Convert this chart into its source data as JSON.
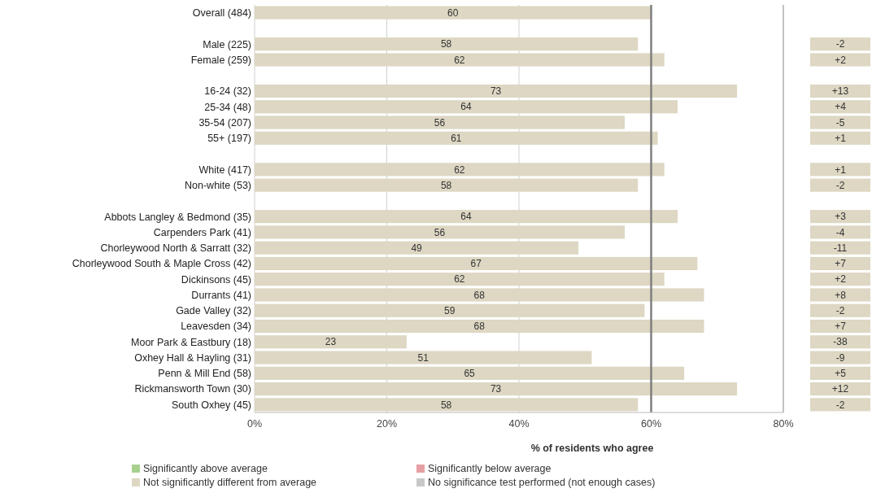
{
  "chart_data": {
    "type": "bar",
    "orientation": "horizontal",
    "xlabel": "% of residents who agree",
    "categories": [
      "Overall (484)",
      null,
      "Male (225)",
      "Female (259)",
      null,
      "16-24 (32)",
      "25-34 (48)",
      "35-54 (207)",
      "55+ (197)",
      null,
      "White (417)",
      "Non-white (53)",
      null,
      "Abbots Langley & Bedmond (35)",
      "Carpenders Park (41)",
      "Chorleywood North & Sarratt (32)",
      "Chorleywood South & Maple Cross (42)",
      "Dickinsons (45)",
      "Durrants (41)",
      "Gade Valley (32)",
      "Leavesden (34)",
      "Moor Park & Eastbury (18)",
      "Oxhey Hall & Hayling (31)",
      "Penn & Mill End (58)",
      "Rickmansworth Town (30)",
      "South Oxhey (45)"
    ],
    "series": [
      {
        "name": "Significantly above average",
        "color": "#a9d18e",
        "values": [
          null,
          null,
          null,
          null,
          null,
          null,
          null,
          null,
          null,
          null,
          null,
          null,
          null,
          null,
          null,
          null,
          null,
          null,
          null,
          null,
          null,
          null,
          null,
          null,
          null,
          null
        ]
      },
      {
        "name": "Significantly below average",
        "color": "#e6a0a4",
        "values": [
          null,
          null,
          null,
          null,
          null,
          null,
          null,
          null,
          null,
          null,
          null,
          null,
          null,
          null,
          null,
          null,
          null,
          null,
          null,
          null,
          null,
          null,
          null,
          null,
          null,
          null
        ]
      },
      {
        "name": "Not significantly different from average",
        "color": "#ddd7c3",
        "values": [
          60,
          null,
          58,
          62,
          null,
          73,
          64,
          56,
          61,
          null,
          62,
          58,
          null,
          64,
          56,
          49,
          67,
          62,
          68,
          59,
          68,
          23,
          51,
          65,
          73,
          58
        ]
      },
      {
        "name": "No significance test performed (not enough cases)",
        "color": "#c8c8c8",
        "values": [
          null,
          null,
          null,
          null,
          null,
          null,
          null,
          null,
          null,
          null,
          null,
          null,
          null,
          null,
          null,
          null,
          null,
          null,
          null,
          null,
          null,
          null,
          null,
          null,
          null,
          null
        ]
      }
    ],
    "data_labels": true,
    "xlim": [
      0,
      80
    ],
    "xticks": [
      {
        "value": 0,
        "label": "0%"
      },
      {
        "value": 20,
        "label": "20%"
      },
      {
        "value": 40,
        "label": "40%"
      },
      {
        "value": 60,
        "label": "60%"
      },
      {
        "value": 80,
        "label": "80%"
      }
    ],
    "grid": "x",
    "legend": "bottom",
    "ref_lines": [
      {
        "axis": "x",
        "value": 60,
        "color": "#7f7f7f"
      }
    ],
    "annotations": [
      "-2",
      "+2",
      "+13",
      "+4",
      "-5",
      "+1",
      "+1",
      "-2",
      "+3",
      "-4",
      "-11",
      "+7",
      "+2",
      "+8",
      "-2",
      "+7",
      "-38",
      "-9",
      "+5",
      "+12",
      "-2"
    ]
  }
}
